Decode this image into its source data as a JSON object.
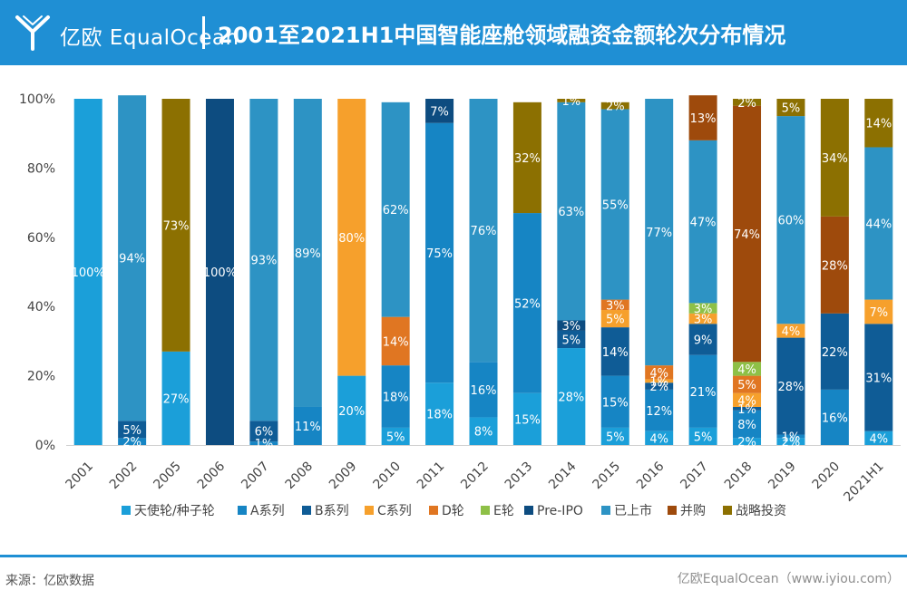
{
  "header": {
    "brand": "亿欧 EqualOcean",
    "title": "2001至2021H1中国智能座舱领域融资金额轮次分布情况"
  },
  "footer": {
    "source": "来源：亿欧数据",
    "credit": "亿欧EqualOcean（www.iyiou.com）"
  },
  "colors": {
    "header_bg": "#1f8fd4",
    "series": [
      "#1b9fd9",
      "#1685c4",
      "#0f5c96",
      "#f6a02c",
      "#e07622",
      "#8ec047",
      "#0d4c80",
      "#2d93c4",
      "#9e4a0c",
      "#8c7001"
    ]
  },
  "chart_data": {
    "type": "bar",
    "stacked": true,
    "percent": true,
    "categories": [
      "2001",
      "2002",
      "2005",
      "2006",
      "2007",
      "2008",
      "2009",
      "2010",
      "2011",
      "2012",
      "2013",
      "2014",
      "2015",
      "2016",
      "2017",
      "2018",
      "2019",
      "2020",
      "2021H1"
    ],
    "ylim": [
      0,
      100
    ],
    "yticks": [
      "0%",
      "20%",
      "40%",
      "60%",
      "80%",
      "100%"
    ],
    "grid": false,
    "legend_position": "bottom",
    "series": [
      {
        "name": "天使轮/种子轮",
        "values": [
          100,
          0,
          27,
          0,
          0,
          0,
          20,
          5,
          18,
          8,
          15,
          28,
          5,
          4,
          5,
          2,
          2,
          0,
          4
        ]
      },
      {
        "name": "A系列",
        "values": [
          0,
          2,
          0,
          0,
          1,
          11,
          0,
          18,
          75,
          16,
          52,
          0,
          15,
          12,
          21,
          8,
          1,
          16,
          0
        ]
      },
      {
        "name": "B系列",
        "values": [
          0,
          5,
          0,
          0,
          6,
          0,
          0,
          0,
          0,
          0,
          0,
          5,
          14,
          2,
          9,
          1,
          28,
          22,
          31
        ]
      },
      {
        "name": "C系列",
        "values": [
          0,
          0,
          0,
          0,
          0,
          0,
          80,
          0,
          0,
          0,
          0,
          0,
          5,
          1,
          3,
          4,
          4,
          0,
          7
        ]
      },
      {
        "name": "D轮",
        "values": [
          0,
          0,
          0,
          0,
          0,
          0,
          0,
          14,
          0,
          0,
          0,
          0,
          3,
          4,
          0,
          5,
          0,
          0,
          0
        ]
      },
      {
        "name": "E轮",
        "values": [
          0,
          0,
          0,
          0,
          0,
          0,
          0,
          0,
          0,
          0,
          0,
          0,
          0,
          0,
          3,
          4,
          0,
          0,
          0
        ]
      },
      {
        "name": "Pre-IPO",
        "values": [
          0,
          0,
          0,
          100,
          0,
          0,
          0,
          0,
          7,
          0,
          0,
          3,
          0,
          0,
          0,
          0,
          0,
          0,
          0
        ]
      },
      {
        "name": "已上市",
        "values": [
          0,
          94,
          0,
          0,
          93,
          89,
          0,
          62,
          0,
          76,
          0,
          63,
          55,
          77,
          47,
          0,
          60,
          0,
          44
        ]
      },
      {
        "name": "并购",
        "values": [
          0,
          0,
          0,
          0,
          0,
          0,
          0,
          0,
          0,
          0,
          0,
          0,
          0,
          0,
          13,
          74,
          0,
          28,
          0
        ]
      },
      {
        "name": "战略投资",
        "values": [
          0,
          0,
          73,
          0,
          0,
          0,
          0,
          0,
          0,
          0,
          32,
          1,
          2,
          0,
          0,
          2,
          5,
          34,
          14
        ]
      }
    ]
  }
}
